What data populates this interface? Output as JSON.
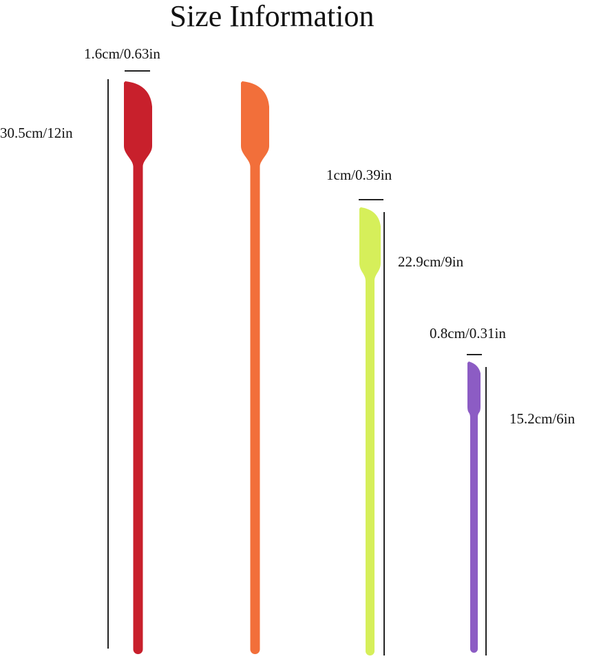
{
  "title": "Size Information",
  "spatulas": [
    {
      "name": "large-red",
      "color": "#c8202c",
      "width_label": "1.6cm/0.63in",
      "length_label": "30.5cm/12in"
    },
    {
      "name": "large-orange",
      "color": "#f26f3a"
    },
    {
      "name": "medium-lime",
      "color": "#d6ef5a",
      "width_label": "1cm/0.39in",
      "length_label": "22.9cm/9in"
    },
    {
      "name": "small-purple",
      "color": "#8c5cc4",
      "width_label": "0.8cm/0.31in",
      "length_label": "15.2cm/6in"
    }
  ],
  "dimension_line_color": "#222222"
}
